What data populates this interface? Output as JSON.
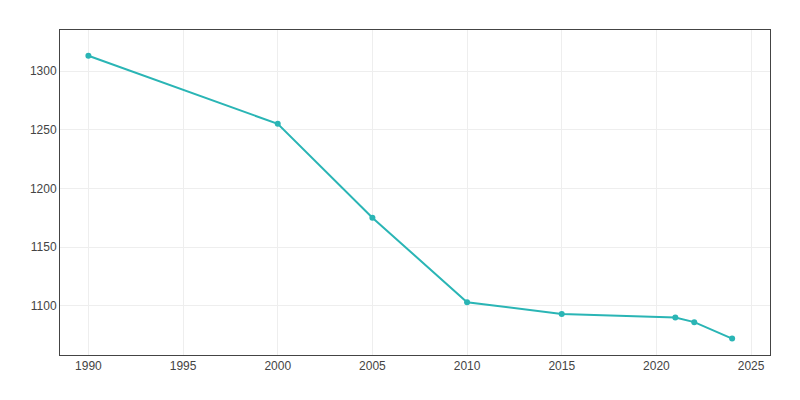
{
  "chart_data": {
    "type": "line",
    "x": [
      1990,
      2000,
      2005,
      2010,
      2015,
      2021,
      2022,
      2024
    ],
    "values": [
      1313,
      1255,
      1175,
      1103,
      1093,
      1090,
      1086,
      1072
    ],
    "color": "#2ab5b5",
    "marker": "circle",
    "xlim": [
      1988.5,
      2026
    ],
    "ylim": [
      1058,
      1335
    ],
    "xticks": [
      1990,
      1995,
      2000,
      2005,
      2010,
      2015,
      2020,
      2025
    ],
    "yticks": [
      1100,
      1150,
      1200,
      1250,
      1300
    ],
    "grid": true
  }
}
